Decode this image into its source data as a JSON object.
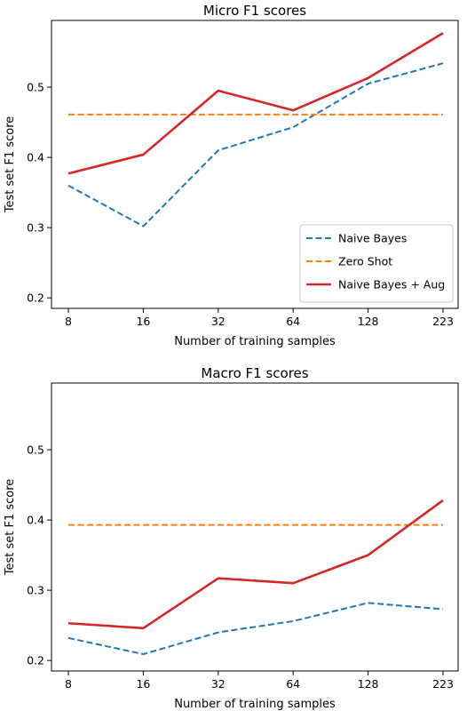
{
  "chart_data": [
    {
      "type": "line",
      "title": "Micro F1 scores",
      "xlabel": "Number of training samples",
      "ylabel": "Test set F1 score",
      "categories": [
        "8",
        "16",
        "32",
        "64",
        "128",
        "223"
      ],
      "ylim": [
        0.185,
        0.595
      ],
      "yticks": [
        "0.2",
        "0.3",
        "0.4",
        "0.5"
      ],
      "grid": false,
      "legend_position": "lower-right",
      "series": [
        {
          "name": "Naive Bayes",
          "color": "#1f77b4",
          "style": "dashed",
          "values": [
            0.36,
            0.302,
            0.41,
            0.443,
            0.505,
            0.534
          ]
        },
        {
          "name": "Zero Shot",
          "color": "#ff7f0e",
          "style": "dashed",
          "values": [
            0.461,
            0.461,
            0.461,
            0.461,
            0.461,
            0.461
          ]
        },
        {
          "name": "Naive Bayes + Aug",
          "color": "#d62728",
          "style": "solid",
          "values": [
            0.377,
            0.404,
            0.495,
            0.467,
            0.513,
            0.577
          ]
        }
      ]
    },
    {
      "type": "line",
      "title": "Macro F1 scores",
      "xlabel": "Number of training samples",
      "ylabel": "Test set F1 score",
      "categories": [
        "8",
        "16",
        "32",
        "64",
        "128",
        "223"
      ],
      "ylim": [
        0.185,
        0.595
      ],
      "yticks": [
        "0.2",
        "0.3",
        "0.4",
        "0.5"
      ],
      "grid": false,
      "legend_position": "none",
      "series": [
        {
          "name": "Naive Bayes",
          "color": "#1f77b4",
          "style": "dashed",
          "values": [
            0.232,
            0.209,
            0.24,
            0.256,
            0.282,
            0.273
          ]
        },
        {
          "name": "Zero Shot",
          "color": "#ff7f0e",
          "style": "dashed",
          "values": [
            0.393,
            0.393,
            0.393,
            0.393,
            0.393,
            0.393
          ]
        },
        {
          "name": "Naive Bayes + Aug",
          "color": "#d62728",
          "style": "solid",
          "values": [
            0.253,
            0.246,
            0.317,
            0.31,
            0.35,
            0.428
          ]
        }
      ]
    }
  ]
}
